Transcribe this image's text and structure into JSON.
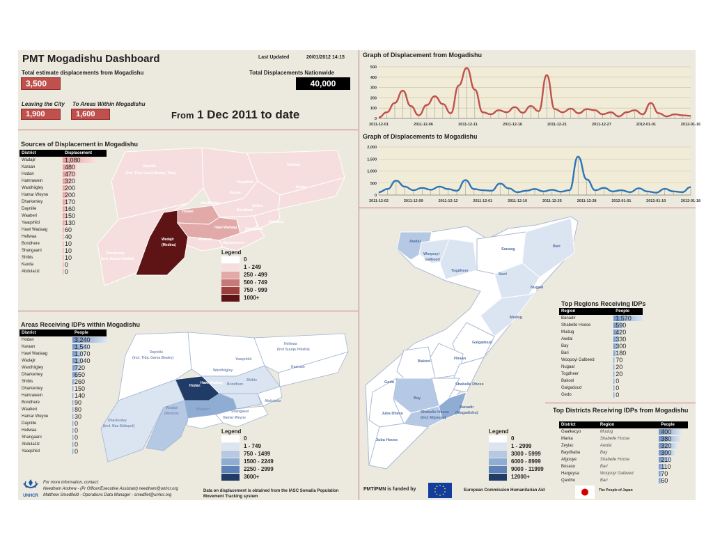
{
  "header": {
    "title": "PMT Mogadishu Dashboard",
    "last_updated_label": "Last Updated",
    "last_updated_value": "20/01/2012 14:15",
    "total_from_label": "Total estimate displacements from Mogadishu",
    "total_from_value": "3,500",
    "total_nation_label": "Total Displacements Nationwide",
    "total_nation_value": "40,000",
    "leaving_label": "Leaving the City",
    "leaving_value": "1,900",
    "within_label": "To Areas Within Mogadishu",
    "within_value": "1,600",
    "period_prefix": "From",
    "period_date": "1 Dec 2011 to date"
  },
  "sources": {
    "title": "Sources of Displacement in Mogadishu",
    "col_district": "District",
    "col_value": "Displacement",
    "rows": [
      {
        "name": "Wadajir",
        "value": "1,080",
        "n": 1080
      },
      {
        "name": "Karaan",
        "value": "480",
        "n": 480
      },
      {
        "name": "Hodan",
        "value": "470",
        "n": 470
      },
      {
        "name": "Hamrawein",
        "value": "320",
        "n": 320
      },
      {
        "name": "Wardhiigley",
        "value": "200",
        "n": 200
      },
      {
        "name": "Hamar Weyne",
        "value": "200",
        "n": 200
      },
      {
        "name": "Dharkenley",
        "value": "170",
        "n": 170
      },
      {
        "name": "Dayniile",
        "value": "160",
        "n": 160
      },
      {
        "name": "Waaberi",
        "value": "150",
        "n": 150
      },
      {
        "name": "Yaaqshiid",
        "value": "130",
        "n": 130
      },
      {
        "name": "Hawl Wadaag",
        "value": "60",
        "n": 60
      },
      {
        "name": "Heliwaa",
        "value": "40",
        "n": 40
      },
      {
        "name": "Bondhere",
        "value": "10",
        "n": 10
      },
      {
        "name": "Shangaani",
        "value": "10",
        "n": 10
      },
      {
        "name": "Shibis",
        "value": "10",
        "n": 10
      },
      {
        "name": "Kaxda",
        "value": "0",
        "n": 0
      },
      {
        "name": "Abdulaziz",
        "value": "0",
        "n": 0
      }
    ],
    "legend_title": "Legend",
    "legend": [
      {
        "label": "0",
        "color": "#ffffff"
      },
      {
        "label": "1 - 249",
        "color": "#f6dede"
      },
      {
        "label": "250 - 499",
        "color": "#e2a9a9"
      },
      {
        "label": "500 - 749",
        "color": "#c97878"
      },
      {
        "label": "750 - 999",
        "color": "#9b3f3f"
      },
      {
        "label": "1000+",
        "color": "#5e1414"
      }
    ],
    "map_labels": [
      "Dayniile",
      "(Incl. Tida, Garsa Bealey, Tiba)",
      "Heliwaa",
      "Kaxda",
      "Karaan",
      "Yaaqshiid",
      "Hodan",
      "Wardhiigley",
      "Bondhere",
      "Shibis",
      "Wadajir",
      "(Medina)",
      "Hawl Wadaag",
      "Waaberi",
      "Shangaani",
      "Abdulaziz",
      "Hamarweyne",
      "Dharkenley",
      "(Incl. Naasa Hablod)"
    ]
  },
  "areas": {
    "title": "Areas Receiving IDPs within Mogadishu",
    "col_district": "District",
    "col_value": "People",
    "rows": [
      {
        "name": "Hodan",
        "value": "3,240",
        "n": 3240
      },
      {
        "name": "Karaan",
        "value": "1,540",
        "n": 1540
      },
      {
        "name": "Hawl Wadaag",
        "value": "1,070",
        "n": 1070
      },
      {
        "name": "Wadajir",
        "value": "1,040",
        "n": 1040
      },
      {
        "name": "Wardhiigley",
        "value": "720",
        "n": 720
      },
      {
        "name": "Dharkenley",
        "value": "650",
        "n": 650
      },
      {
        "name": "Shibis",
        "value": "260",
        "n": 260
      },
      {
        "name": "Dharkenley",
        "value": "150",
        "n": 150
      },
      {
        "name": "Hamrawein",
        "value": "140",
        "n": 140
      },
      {
        "name": "Bondhere",
        "value": "90",
        "n": 90
      },
      {
        "name": "Waaberi",
        "value": "80",
        "n": 80
      },
      {
        "name": "Hamar Weyne",
        "value": "30",
        "n": 30
      },
      {
        "name": "Dayniile",
        "value": "0",
        "n": 0
      },
      {
        "name": "Heliwaa",
        "value": "0",
        "n": 0
      },
      {
        "name": "Shangaani",
        "value": "0",
        "n": 0
      },
      {
        "name": "Abdulaziz",
        "value": "0",
        "n": 0
      },
      {
        "name": "Yaaqshiid",
        "value": "0",
        "n": 0
      }
    ],
    "legend_title": "Legend",
    "legend": [
      {
        "label": "0",
        "color": "#ffffff"
      },
      {
        "label": "1 - 749",
        "color": "#dbe5f2"
      },
      {
        "label": "750 - 1499",
        "color": "#b6c9e4"
      },
      {
        "label": "1500 - 2249",
        "color": "#8facd3"
      },
      {
        "label": "2250 - 2999",
        "color": "#5c82b8"
      },
      {
        "label": "3000+",
        "color": "#1f3b66"
      }
    ],
    "map_labels": [
      "Dayniile",
      "(Incl. Tida, Garsa Bealey)",
      "Heliwaa",
      "(Incl Suuqa Holaha)",
      "Yaaqshiid",
      "Kaaraan",
      "Wardhiigley",
      "Hodan",
      "Bondhere",
      "Shibis",
      "Wadajir",
      "(Medina)",
      "Hawl Wadaag",
      "Waaberi",
      "Shangaani",
      "Abdulaziz",
      "Hamar Weyne",
      "Dharkenley",
      "(Incl. Naa Shibqod)"
    ]
  },
  "graph_from": {
    "title": "Graph of Displacement from Mogadishu",
    "color": "#c0504d",
    "x_labels": [
      "2011-12-01",
      "2011-12-06",
      "2011-12-11",
      "2011-12-16",
      "2011-12-21",
      "2011-12-27",
      "2012-01-01",
      "2012-01-16"
    ],
    "y_ticks": [
      0,
      100,
      200,
      300,
      400,
      500
    ]
  },
  "graph_to": {
    "title": "Graph of Displacements to Mogadishu",
    "color": "#2e75b6",
    "x_labels": [
      "2011-12-02",
      "2011-12-09",
      "2011-12-12",
      "2011-12-01",
      "2011-12-10",
      "2011-12-25",
      "2011-12-28",
      "2012-01-01",
      "2012-01-10",
      "2012-01-18"
    ],
    "y_ticks": [
      "0",
      "500",
      "1,000",
      "1,500",
      "2,000"
    ]
  },
  "chart_data": [
    {
      "type": "line",
      "title": "Graph of Displacement from Mogadishu",
      "ylim": [
        0,
        500
      ],
      "x": [
        "2011-12-01",
        "",
        "",
        "",
        "",
        "",
        "",
        "",
        "",
        "2011-12-06",
        "",
        "",
        "",
        "",
        "2011-12-11",
        "",
        "",
        "",
        "",
        "2011-12-16",
        "",
        "",
        "",
        "",
        "2011-12-21",
        "",
        "",
        "",
        "",
        "2011-12-27",
        "",
        "",
        "",
        "",
        "2012-01-01",
        "",
        "",
        "",
        "",
        "2012-01-16"
      ],
      "series": [
        {
          "values": [
            10,
            60,
            150,
            270,
            120,
            30,
            130,
            215,
            140,
            50,
            320,
            490,
            280,
            60,
            40,
            80,
            60,
            110,
            55,
            120,
            70,
            420,
            90,
            60,
            95,
            50,
            90,
            80,
            40,
            60,
            20,
            60,
            80,
            40,
            150,
            50,
            20,
            40,
            30,
            25
          ]
        }
      ]
    },
    {
      "type": "line",
      "title": "Graph of Displacements to Mogadishu",
      "ylim": [
        0,
        2000
      ],
      "x": [
        "2011-12-02",
        "",
        "",
        "",
        "2011-12-09",
        "",
        "",
        "",
        "2011-12-12",
        "",
        "",
        "",
        "2011-12-01",
        "",
        "",
        "",
        "2011-12-10",
        "",
        "",
        "",
        "2011-12-25",
        "",
        "",
        "",
        "2011-12-28",
        "",
        "",
        "",
        "2012-01-01",
        "",
        "",
        "",
        "2012-01-10",
        "",
        "",
        "",
        "2012-01-18"
      ],
      "series": [
        {
          "values": [
            120,
            250,
            600,
            350,
            200,
            300,
            220,
            350,
            250,
            180,
            620,
            250,
            200,
            180,
            480,
            280,
            120,
            180,
            250,
            150,
            220,
            140,
            200,
            1600,
            650,
            200,
            300,
            150,
            200,
            120,
            280,
            150,
            100,
            260,
            150,
            120,
            330
          ]
        }
      ]
    }
  ],
  "regions": {
    "title": "Top Regions Receiving IDPs",
    "col_region": "Region",
    "col_value": "People",
    "rows": [
      {
        "name": "Banadir",
        "value": "1,570",
        "n": 1570
      },
      {
        "name": "Shabelle Hoose",
        "value": "590",
        "n": 590
      },
      {
        "name": "Mudug",
        "value": "420",
        "n": 420
      },
      {
        "name": "Awdal",
        "value": "330",
        "n": 330
      },
      {
        "name": "Bay",
        "value": "300",
        "n": 300
      },
      {
        "name": "Bari",
        "value": "180",
        "n": 180
      },
      {
        "name": "Woqooyi Galbeed",
        "value": "70",
        "n": 70
      },
      {
        "name": "Nugaal",
        "value": "20",
        "n": 20
      },
      {
        "name": "Togdheer",
        "value": "20",
        "n": 20
      },
      {
        "name": "Bakool",
        "value": "0",
        "n": 0
      },
      {
        "name": "Galgaduud",
        "value": "0",
        "n": 0
      },
      {
        "name": "Gedo",
        "value": "0",
        "n": 0
      }
    ]
  },
  "somalia_map": {
    "labels": [
      "Awdal",
      "Woqooyi",
      "Galbeed",
      "Sanaag",
      "Bari",
      "Togdheer",
      "Sool",
      "Nugaal",
      "Mudug",
      "Galgaduud",
      "Bakool",
      "Hiraan",
      "Gedo",
      "Bay",
      "Shabelle Dhexe",
      "Banadir",
      "(Mogadishu)",
      "Shabelle Hoose",
      "(Incl Afgooye)",
      "Juba Dhexe",
      "Juba Hoose"
    ],
    "legend_title": "Legend",
    "legend": [
      {
        "label": "0",
        "color": "#ffffff"
      },
      {
        "label": "1 - 2999",
        "color": "#dbe5f2"
      },
      {
        "label": "3000 - 5999",
        "color": "#b6c9e4"
      },
      {
        "label": "6000 - 8999",
        "color": "#8facd3"
      },
      {
        "label": "9000 - 11999",
        "color": "#5c82b8"
      },
      {
        "label": "12000+",
        "color": "#1f3b66"
      }
    ]
  },
  "top_districts": {
    "title": "Top Districts Receiving IDPs from Mogadishu",
    "col_district": "District",
    "col_region": "Region",
    "col_value": "People",
    "rows": [
      {
        "name": "Gaalkacyo",
        "region": "Mudug",
        "value": "400",
        "n": 400
      },
      {
        "name": "Marka",
        "region": "Shabelle Hoose",
        "value": "380",
        "n": 380
      },
      {
        "name": "Zeylac",
        "region": "Awdal",
        "value": "320",
        "n": 320
      },
      {
        "name": "Baydhaba",
        "region": "Bay",
        "value": "300",
        "n": 300
      },
      {
        "name": "Afgooye",
        "region": "Shabelle Hoose",
        "value": "210",
        "n": 210
      },
      {
        "name": "Bosaso",
        "region": "Bari",
        "value": "110",
        "n": 110
      },
      {
        "name": "Hargeysa",
        "region": "Woqooyi Galbeed",
        "value": "70",
        "n": 70
      },
      {
        "name": "Qardho",
        "region": "Bari",
        "value": "60",
        "n": 60
      }
    ]
  },
  "footer": {
    "contact_title": "For more information, contact:",
    "contact_1": "Needham Andrew - (Pr Officer/Executive Assistant) needham@unhcr.org",
    "contact_2": "Matthew Smedfield - Operations Data Manager - smedfiel@unhcr.org",
    "data_note_1": "Data on displacement is obtained from the IASC Somalia Population",
    "data_note_2": "Movement Tracking system",
    "funded_by": "PMT/PMN is funded by",
    "echo": "European Commission Humanitarian Aid",
    "japan": "The People of Japan",
    "unhcr": "UNHCR"
  }
}
